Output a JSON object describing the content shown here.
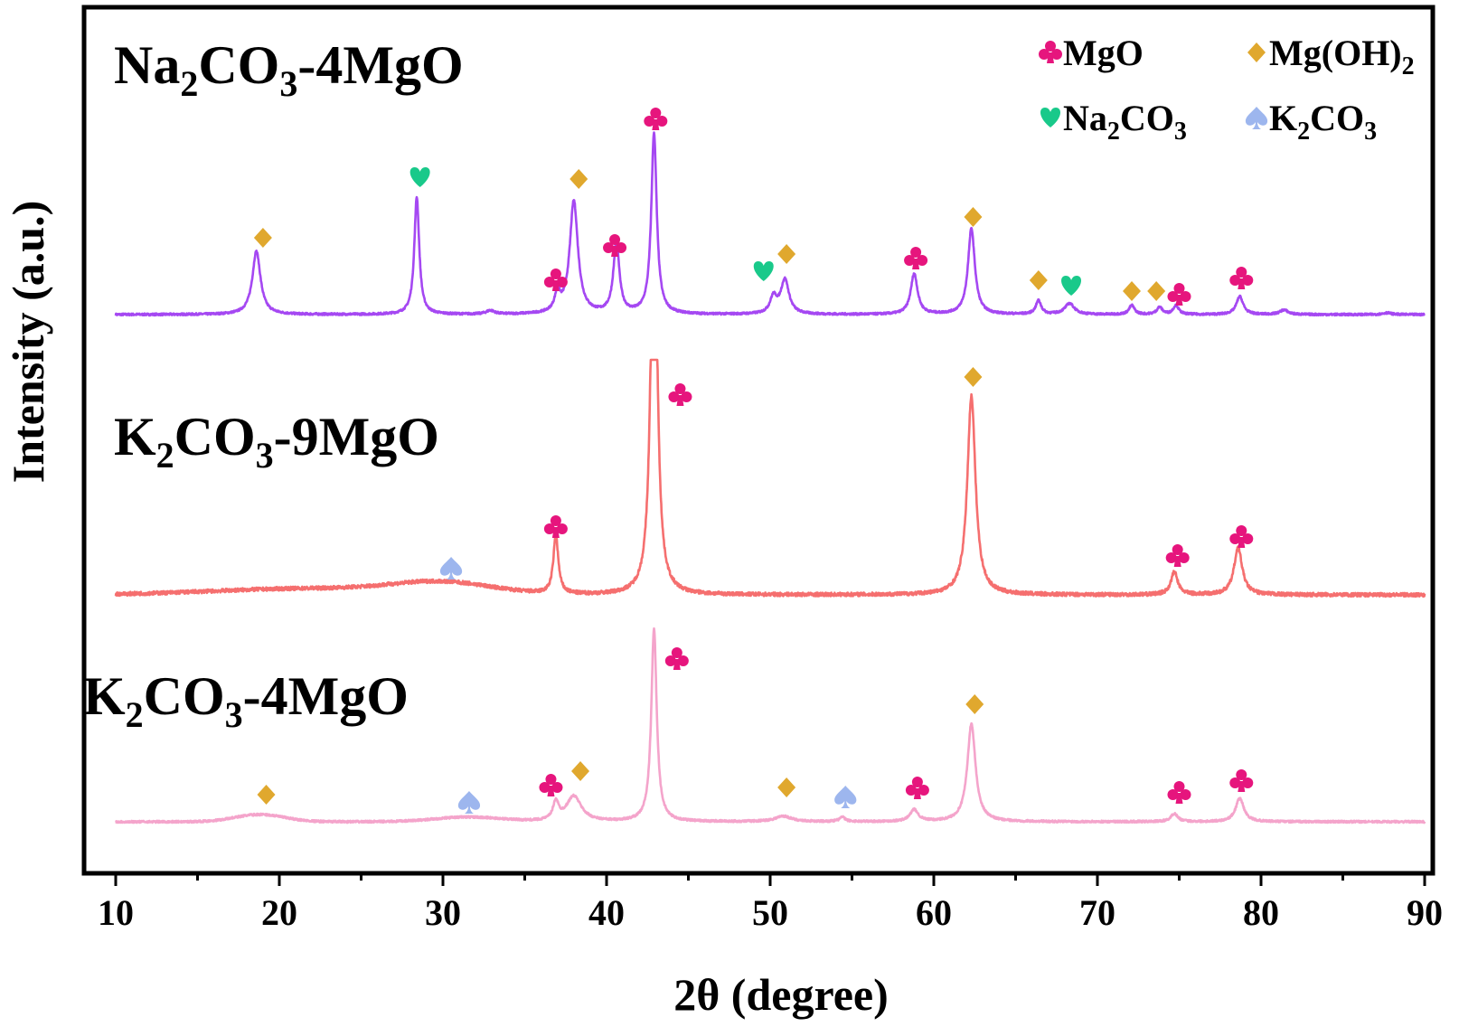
{
  "chart_data": {
    "type": "line",
    "title": "",
    "xlabel": "2θ (degree)",
    "ylabel": "Intensity (a.u.)",
    "xlim": [
      10,
      90
    ],
    "x_ticks": [
      10,
      20,
      30,
      40,
      50,
      60,
      70,
      80,
      90
    ],
    "grid": false,
    "y_ticks_shown": false,
    "legend": {
      "placement": "top-right",
      "items": [
        {
          "marker": "club",
          "color": "#e6157d",
          "main": "MgO",
          "sub": ""
        },
        {
          "marker": "diamond",
          "color": "#e0a82e",
          "main": "Mg(OH)",
          "sub": "2"
        },
        {
          "marker": "heart",
          "color": "#19c98a",
          "main": "Na",
          "sub": "2",
          "main2": "CO",
          "sub2": "3"
        },
        {
          "marker": "spade",
          "color": "#9db6ee",
          "main": "K",
          "sub": "2",
          "main2": "CO",
          "sub2": "3"
        }
      ]
    },
    "series": [
      {
        "name_parts": [
          {
            "t": "Na"
          },
          {
            "t": "2",
            "sub": true
          },
          {
            "t": "CO"
          },
          {
            "t": "3",
            "sub": true
          },
          {
            "t": "-4MgO"
          }
        ],
        "color": "#a548f2",
        "relative_intensity": true,
        "baseline": 0,
        "peaks": [
          [
            18.6,
            70,
            0.3
          ],
          [
            28.4,
            130,
            0.18
          ],
          [
            32.9,
            4,
            0.3
          ],
          [
            37.0,
            20,
            0.2
          ],
          [
            38.0,
            125,
            0.3
          ],
          [
            40.6,
            78,
            0.22
          ],
          [
            42.9,
            200,
            0.2
          ],
          [
            50.2,
            18,
            0.25
          ],
          [
            50.9,
            38,
            0.3
          ],
          [
            58.8,
            45,
            0.25
          ],
          [
            62.3,
            95,
            0.25
          ],
          [
            66.4,
            15,
            0.2
          ],
          [
            68.3,
            12,
            0.35
          ],
          [
            72.1,
            10,
            0.2
          ],
          [
            73.8,
            8,
            0.2
          ],
          [
            74.8,
            10,
            0.2
          ],
          [
            78.7,
            20,
            0.25
          ],
          [
            81.4,
            5,
            0.3
          ],
          [
            87.7,
            2,
            0.3
          ]
        ],
        "humps": [],
        "markers": [
          {
            "type": "diamond",
            "x": 19.0,
            "y": 85
          },
          {
            "type": "heart",
            "x": 28.6,
            "y": 152
          },
          {
            "type": "club",
            "x": 36.9,
            "y": 38
          },
          {
            "type": "diamond",
            "x": 38.3,
            "y": 150
          },
          {
            "type": "club",
            "x": 40.5,
            "y": 76
          },
          {
            "type": "club",
            "x": 43.0,
            "y": 216
          },
          {
            "type": "heart",
            "x": 49.6,
            "y": 48
          },
          {
            "type": "diamond",
            "x": 51.0,
            "y": 67
          },
          {
            "type": "club",
            "x": 58.9,
            "y": 62
          },
          {
            "type": "diamond",
            "x": 62.4,
            "y": 108
          },
          {
            "type": "diamond",
            "x": 66.4,
            "y": 38
          },
          {
            "type": "heart",
            "x": 68.4,
            "y": 32
          },
          {
            "type": "diamond",
            "x": 72.1,
            "y": 26
          },
          {
            "type": "diamond",
            "x": 73.6,
            "y": 26
          },
          {
            "type": "club",
            "x": 75.0,
            "y": 22
          },
          {
            "type": "club",
            "x": 78.8,
            "y": 40
          }
        ]
      },
      {
        "name_parts": [
          {
            "t": "K"
          },
          {
            "t": "2",
            "sub": true
          },
          {
            "t": "CO"
          },
          {
            "t": "3",
            "sub": true
          },
          {
            "t": "-9MgO"
          }
        ],
        "color": "#f56f6f",
        "relative_intensity": true,
        "baseline": 0,
        "clip_top": 260,
        "peaks": [
          [
            36.9,
            65,
            0.18
          ],
          [
            42.9,
            500,
            0.22
          ],
          [
            62.3,
            220,
            0.3
          ],
          [
            74.7,
            25,
            0.25
          ],
          [
            78.6,
            52,
            0.3
          ]
        ],
        "humps": [
          [
            22,
            7,
            6
          ],
          [
            30,
            12,
            3
          ]
        ],
        "markers": [
          {
            "type": "spade",
            "x": 30.5,
            "y": 30
          },
          {
            "type": "club",
            "x": 36.9,
            "y": 75
          },
          {
            "type": "club",
            "x": 44.5,
            "y": 221
          },
          {
            "type": "diamond",
            "x": 62.4,
            "y": 241
          },
          {
            "type": "club",
            "x": 74.9,
            "y": 43
          },
          {
            "type": "club",
            "x": 78.8,
            "y": 64
          }
        ]
      },
      {
        "name_parts": [
          {
            "t": "K"
          },
          {
            "t": "2",
            "sub": true
          },
          {
            "t": "CO"
          },
          {
            "t": "3",
            "sub": true
          },
          {
            "t": "-4MgO"
          }
        ],
        "color": "#f4a4cb",
        "relative_intensity": true,
        "baseline": 0,
        "peaks": [
          [
            36.9,
            20,
            0.2
          ],
          [
            38.0,
            28,
            0.55
          ],
          [
            42.9,
            213,
            0.2
          ],
          [
            50.8,
            6,
            0.6
          ],
          [
            54.4,
            5,
            0.2
          ],
          [
            58.8,
            13,
            0.3
          ],
          [
            62.3,
            108,
            0.3
          ],
          [
            74.7,
            9,
            0.25
          ],
          [
            78.7,
            26,
            0.3
          ]
        ],
        "humps": [
          [
            18.8,
            8,
            1.5
          ],
          [
            31.5,
            5,
            2
          ]
        ],
        "markers": [
          {
            "type": "diamond",
            "x": 19.2,
            "y": 30
          },
          {
            "type": "spade",
            "x": 31.6,
            "y": 22
          },
          {
            "type": "club",
            "x": 36.6,
            "y": 40
          },
          {
            "type": "diamond",
            "x": 38.4,
            "y": 56
          },
          {
            "type": "club",
            "x": 44.3,
            "y": 180
          },
          {
            "type": "diamond",
            "x": 51.0,
            "y": 38
          },
          {
            "type": "spade",
            "x": 54.6,
            "y": 28
          },
          {
            "type": "club",
            "x": 59.0,
            "y": 37
          },
          {
            "type": "diamond",
            "x": 62.5,
            "y": 130
          },
          {
            "type": "club",
            "x": 75.0,
            "y": 32
          },
          {
            "type": "club",
            "x": 78.8,
            "y": 45
          }
        ]
      }
    ]
  }
}
